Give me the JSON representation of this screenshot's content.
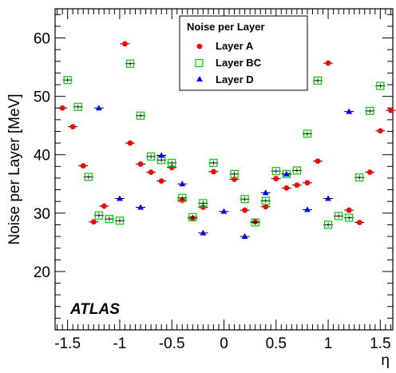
{
  "chart_data": {
    "type": "scatter",
    "title": "",
    "xlabel": "η",
    "ylabel": "Noise per Layer [MeV]",
    "xlim": [
      -1.62,
      1.62
    ],
    "ylim": [
      10,
      65
    ],
    "xticks": [
      -1.5,
      -1,
      -0.5,
      0,
      0.5,
      1,
      1.5
    ],
    "xtick_labels": [
      "-1.5",
      "-1",
      "-0.5",
      "0",
      "0.5",
      "1",
      "1.5"
    ],
    "yticks": [
      20,
      30,
      40,
      50,
      60
    ],
    "ytick_labels": [
      "20",
      "30",
      "40",
      "50",
      "60"
    ],
    "grid": false,
    "legend": {
      "title": "Noise per Layer",
      "placement": "top-center"
    },
    "annotation": "ATLAS",
    "colors": {
      "layer_a": "#ff0000",
      "layer_bc": "#00cc00",
      "layer_d": "#0000ff"
    },
    "series": [
      {
        "name": "Layer A",
        "marker": "filled-circle",
        "color": "#ff0000",
        "points": [
          [
            -1.55,
            48.0
          ],
          [
            -1.45,
            44.8
          ],
          [
            -1.35,
            38.1
          ],
          [
            -1.25,
            28.5
          ],
          [
            -1.15,
            31.2
          ],
          [
            -0.95,
            59.0
          ],
          [
            -0.9,
            42.0
          ],
          [
            -0.8,
            38.4
          ],
          [
            -0.7,
            37.0
          ],
          [
            -0.6,
            35.5
          ],
          [
            -0.5,
            37.8
          ],
          [
            -0.4,
            32.2
          ],
          [
            -0.3,
            29.1
          ],
          [
            -0.2,
            31.0
          ],
          [
            -0.1,
            37.1
          ],
          [
            0.1,
            35.8
          ],
          [
            0.2,
            30.5
          ],
          [
            0.3,
            28.5
          ],
          [
            0.4,
            31.1
          ],
          [
            0.5,
            35.9
          ],
          [
            0.6,
            34.3
          ],
          [
            0.7,
            34.8
          ],
          [
            0.8,
            35.2
          ],
          [
            0.9,
            38.9
          ],
          [
            1.0,
            55.7
          ],
          [
            1.2,
            30.5
          ],
          [
            1.3,
            28.4
          ],
          [
            1.4,
            37.0
          ],
          [
            1.5,
            44.1
          ],
          [
            1.6,
            47.6
          ]
        ]
      },
      {
        "name": "Layer BC",
        "marker": "open-square",
        "color": "#00cc00",
        "points": [
          [
            -1.5,
            52.8
          ],
          [
            -1.4,
            48.2
          ],
          [
            -1.3,
            36.2
          ],
          [
            -1.2,
            29.6
          ],
          [
            -1.1,
            29.0
          ],
          [
            -1.0,
            28.7
          ],
          [
            -0.9,
            55.6
          ],
          [
            -0.8,
            46.7
          ],
          [
            -0.7,
            39.7
          ],
          [
            -0.6,
            39.1
          ],
          [
            -0.5,
            38.6
          ],
          [
            -0.4,
            32.6
          ],
          [
            -0.3,
            29.3
          ],
          [
            -0.2,
            31.7
          ],
          [
            -0.1,
            38.6
          ],
          [
            0.1,
            36.7
          ],
          [
            0.2,
            32.4
          ],
          [
            0.3,
            28.4
          ],
          [
            0.4,
            32.1
          ],
          [
            0.5,
            37.2
          ],
          [
            0.6,
            36.7
          ],
          [
            0.7,
            37.3
          ],
          [
            0.8,
            43.6
          ],
          [
            0.9,
            52.7
          ],
          [
            1.0,
            28.0
          ],
          [
            1.1,
            29.5
          ],
          [
            1.2,
            29.2
          ],
          [
            1.3,
            36.1
          ],
          [
            1.4,
            47.5
          ],
          [
            1.5,
            51.8
          ]
        ]
      },
      {
        "name": "Layer D",
        "marker": "filled-triangle",
        "color": "#0000ff",
        "points": [
          [
            -1.2,
            48.0
          ],
          [
            -1.0,
            32.5
          ],
          [
            -0.8,
            31.0
          ],
          [
            -0.6,
            39.9
          ],
          [
            -0.4,
            35.0
          ],
          [
            -0.2,
            26.6
          ],
          [
            0.0,
            30.3
          ],
          [
            0.2,
            26.0
          ],
          [
            0.4,
            33.5
          ],
          [
            0.6,
            36.7
          ],
          [
            0.8,
            30.6
          ],
          [
            1.0,
            32.5
          ],
          [
            1.2,
            47.4
          ]
        ]
      }
    ]
  }
}
